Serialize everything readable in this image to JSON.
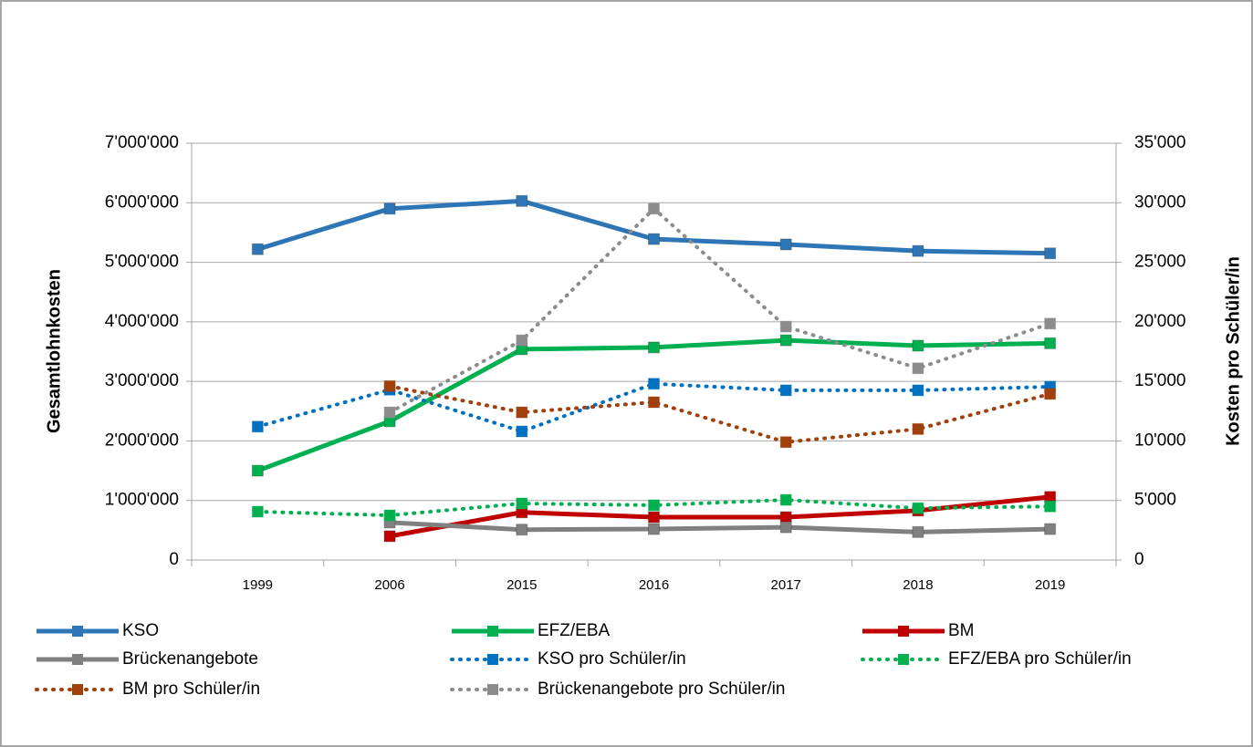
{
  "chart_data": {
    "type": "line",
    "ylabel": "Gesamtlohnkosten",
    "y2label": "Kosten pro Schüler/in",
    "categories": [
      "1999",
      "2006",
      "2015",
      "2016",
      "2017",
      "2018",
      "2019"
    ],
    "ylim": [
      0,
      7000000
    ],
    "yticks": [
      0,
      {
        "value": 1000000,
        "label": "1'000'000"
      },
      {
        "value": 2000000,
        "label": "2'000'000"
      },
      {
        "value": 3000000,
        "label": "3'000'000"
      },
      {
        "value": 4000000,
        "label": "4'000'000"
      },
      {
        "value": 5000000,
        "label": "5'000'000"
      },
      {
        "value": 6000000,
        "label": "6'000'000"
      },
      {
        "value": 7000000,
        "label": "7'000'000"
      }
    ],
    "y2lim": [
      0,
      35000
    ],
    "y2ticks": [
      0,
      {
        "value": 5000,
        "label": "5'000"
      },
      {
        "value": 10000,
        "label": "10'000"
      },
      {
        "value": 15000,
        "label": "15'000"
      },
      {
        "value": 20000,
        "label": "20'000"
      },
      {
        "value": 25000,
        "label": "25'000"
      },
      {
        "value": 30000,
        "label": "30'000"
      },
      {
        "value": 35000,
        "label": "35'000"
      }
    ],
    "grid": true,
    "legend": "bottom",
    "series": [
      {
        "name": "KSO",
        "color": "#2e75b6",
        "style": "solid",
        "values": [
          5220000,
          5900000,
          6030000,
          5390000,
          5300000,
          5190000,
          5150000
        ]
      },
      {
        "name": "EFZ/EBA",
        "color": "#00b050",
        "style": "solid",
        "values": [
          1500000,
          2330000,
          3540000,
          3570000,
          3690000,
          3600000,
          3640000
        ]
      },
      {
        "name": "BM",
        "color": "#c00000",
        "style": "solid",
        "values": [
          null,
          400000,
          800000,
          720000,
          720000,
          830000,
          1060000
        ]
      },
      {
        "name": "Brückenangebote",
        "color": "#808080",
        "style": "solid",
        "values": [
          null,
          630000,
          510000,
          520000,
          550000,
          470000,
          520000
        ]
      },
      {
        "name": "KSO pro Schüler/in",
        "color": "#0070c0",
        "style": "dotted",
        "axis": "y2",
        "values": [
          11200,
          14300,
          10800,
          14800,
          14250,
          14250,
          14550
        ]
      },
      {
        "name": "EFZ/EBA pro Schüler/in",
        "color": "#00b050",
        "style": "dotted",
        "axis": "y2",
        "values": [
          4060,
          3750,
          4750,
          4600,
          5050,
          4350,
          4500
        ]
      },
      {
        "name": "BM pro Schüler/in",
        "color": "#a0400c",
        "style": "dotted",
        "axis": "y2",
        "values": [
          null,
          14600,
          12400,
          13250,
          9900,
          11000,
          13950
        ]
      },
      {
        "name": "Brückenangebote pro Schüler/in",
        "color": "#8c8c8c",
        "style": "dotted",
        "axis": "y2",
        "values": [
          null,
          12400,
          18450,
          29500,
          19600,
          16100,
          19850
        ]
      }
    ]
  }
}
